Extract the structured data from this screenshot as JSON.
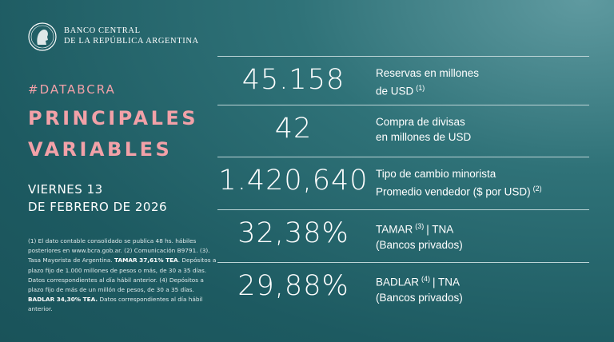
{
  "header": {
    "org_line1": "BANCO CENTRAL",
    "org_line2": "DE LA REPÚBLICA ARGENTINA"
  },
  "hashtag": "#DATABCRA",
  "title_line1": "PRINCIPALES",
  "title_line2": "VARIABLES",
  "date_line1": "VIERNES 13",
  "date_line2": "DE FEBRERO DE 2026",
  "footnote": [
    {
      "text": "(1) El dato contable consolidado se publica 48 hs. hábiles posteriores en www.bcra.gob.ar. (2) Comunicación B9791. (3). Tasa Mayorista de Argentina. "
    },
    {
      "bold": "TAMAR 37,61% TEA"
    },
    {
      "text": ". Depósitos a plazo fijo de 1.000 millones de pesos o más, de 30 a 35 días. Datos correspondientes al día hábil anterior. (4) Depósitos a plazo fijo de más de un millón de pesos, de 30 a 35 días. "
    },
    {
      "bold": "BADLAR 34,30% TEA."
    },
    {
      "text": " Datos correspondientes al día hábil anterior."
    }
  ],
  "rows": [
    {
      "value": "45.158",
      "lines": [
        [
          {
            "text": "Reservas en millones"
          }
        ],
        [
          {
            "text": "de USD"
          },
          {
            "sup": "(1)"
          }
        ]
      ]
    },
    {
      "value": "42",
      "lines": [
        [
          {
            "text": "Compra de divisas"
          }
        ],
        [
          {
            "text": "en millones de USD"
          }
        ]
      ]
    },
    {
      "value": "1.420,640",
      "lines": [
        [
          {
            "text": "Tipo de cambio minorista"
          }
        ],
        [
          {
            "text": "Promedio vendedor ($ por USD)"
          },
          {
            "sup": "(2)"
          }
        ]
      ]
    },
    {
      "value": "32,38%",
      "lines": [
        [
          {
            "text": "TAMAR"
          },
          {
            "sup": "(3)"
          },
          {
            "text": "| TNA"
          }
        ],
        [
          {
            "text": "(Bancos privados)"
          }
        ]
      ]
    },
    {
      "value": "29,88%",
      "lines": [
        [
          {
            "text": "BADLAR"
          },
          {
            "sup": "(4)"
          },
          {
            "text": "| TNA"
          }
        ],
        [
          {
            "text": "(Bancos privados)"
          }
        ]
      ]
    }
  ]
}
